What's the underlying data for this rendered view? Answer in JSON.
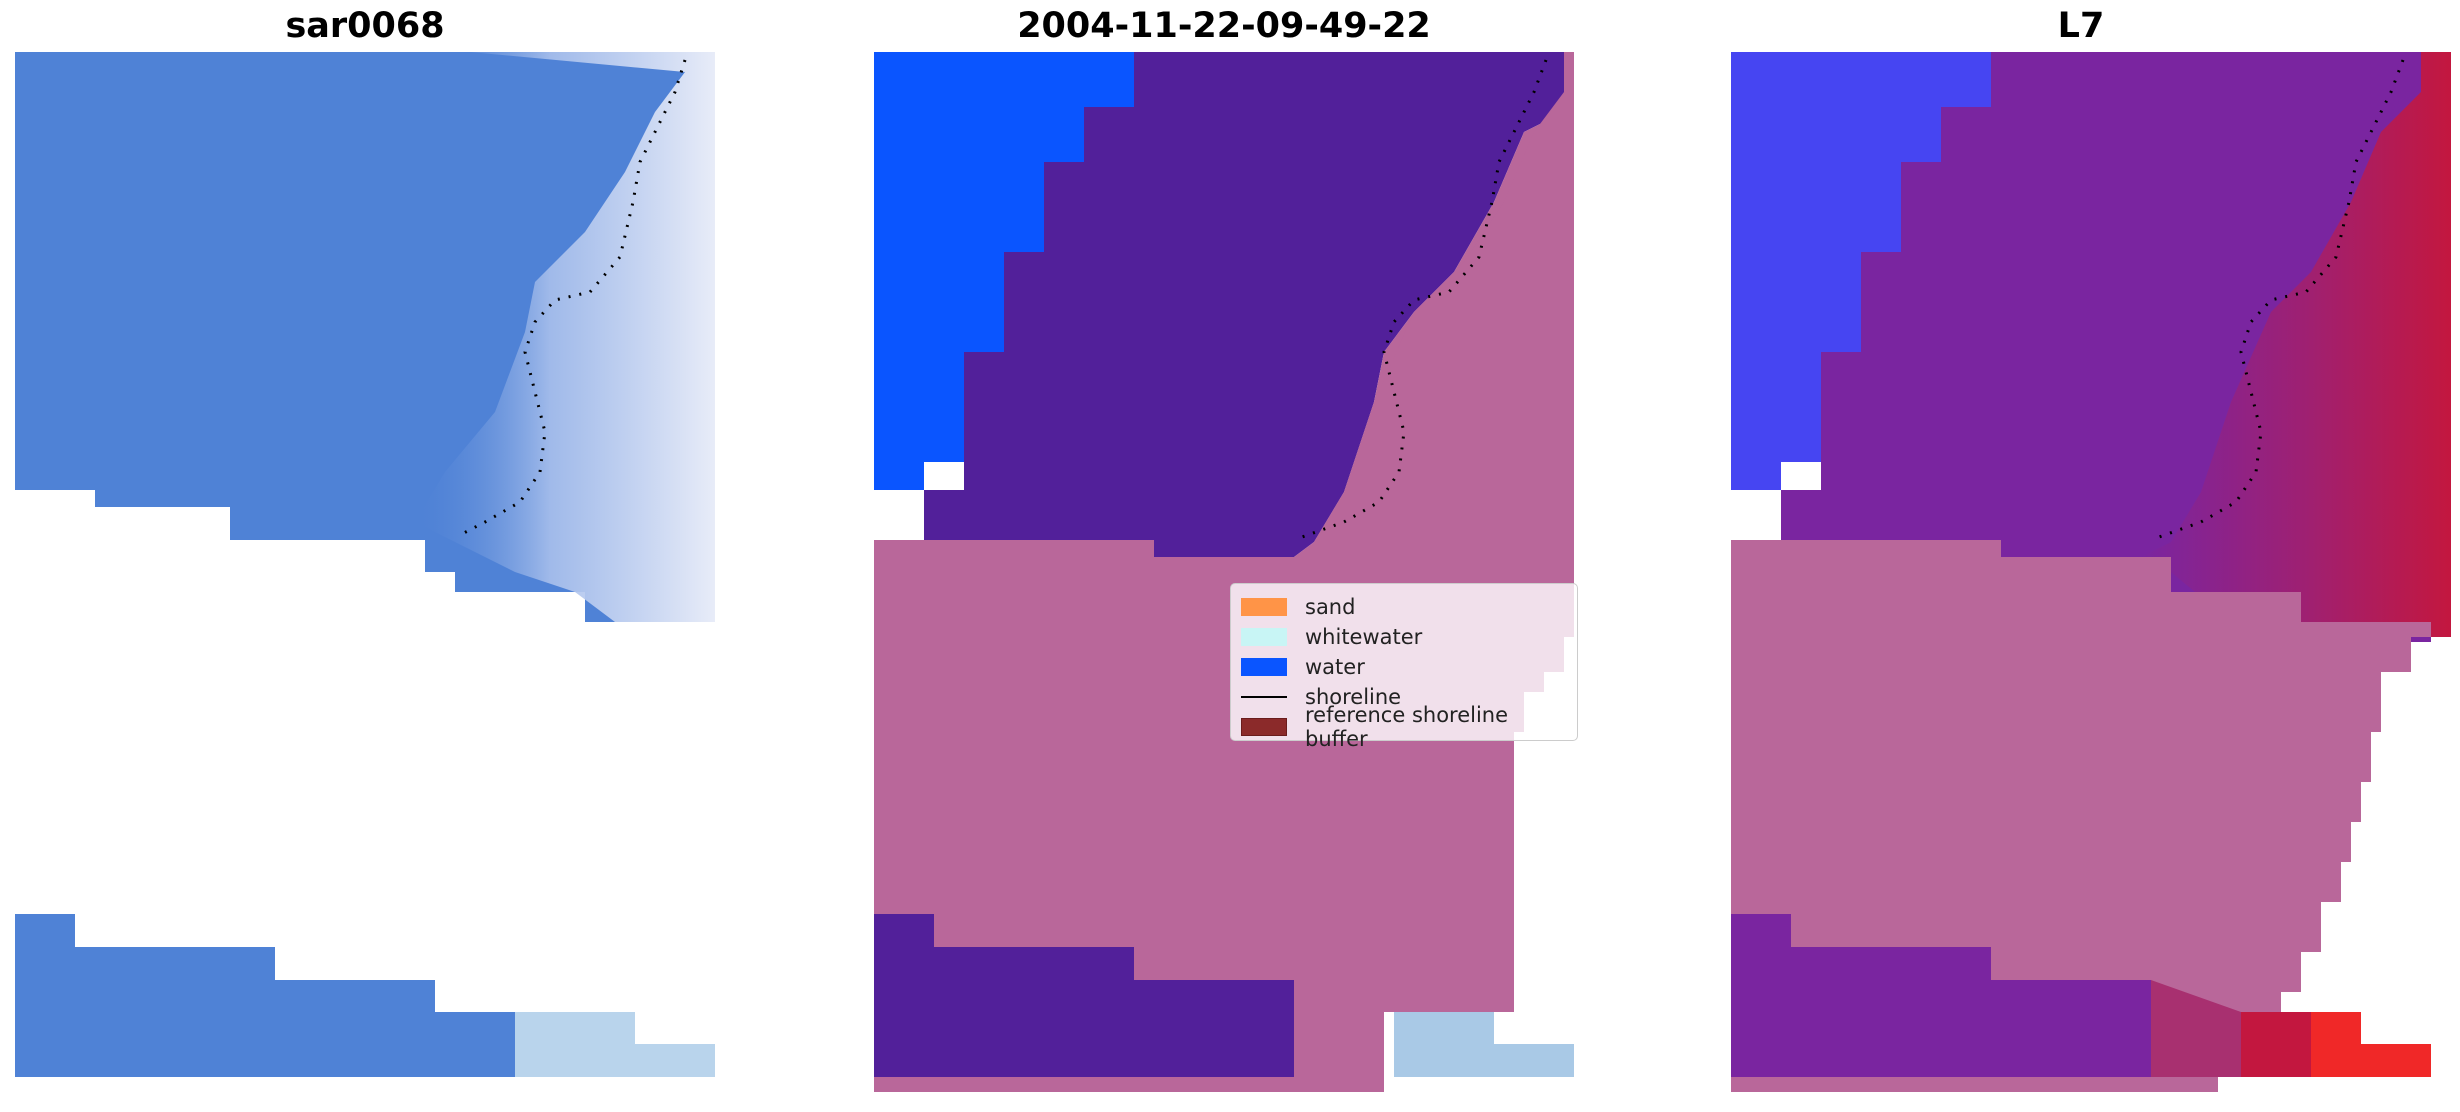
{
  "panels": [
    {
      "title": "sar0068"
    },
    {
      "title": "2004-11-22-09-49-22"
    },
    {
      "title": "L7"
    }
  ],
  "legend": {
    "items": [
      {
        "label": "sand",
        "kind": "patch",
        "color": "#ff9447"
      },
      {
        "label": "whitewater",
        "kind": "patch",
        "color": "#c8f5f5"
      },
      {
        "label": "water",
        "kind": "patch",
        "color": "#0a55ff"
      },
      {
        "label": "shoreline",
        "kind": "line",
        "color": "#000000"
      },
      {
        "label": "reference shoreline buffer",
        "kind": "patch",
        "color": "#8b2a2a"
      }
    ]
  },
  "colors": {
    "water": "#0a55ff",
    "water_class_overlay": "#52209a",
    "reference_buffer_overlay": "#b9679a",
    "sar_water": "#4f82d6",
    "sar_whitewater": "#cdd8f0",
    "l7_water": "#4645f2",
    "l7_land": "#c3173f",
    "l7_sea": "#7a25a0"
  }
}
